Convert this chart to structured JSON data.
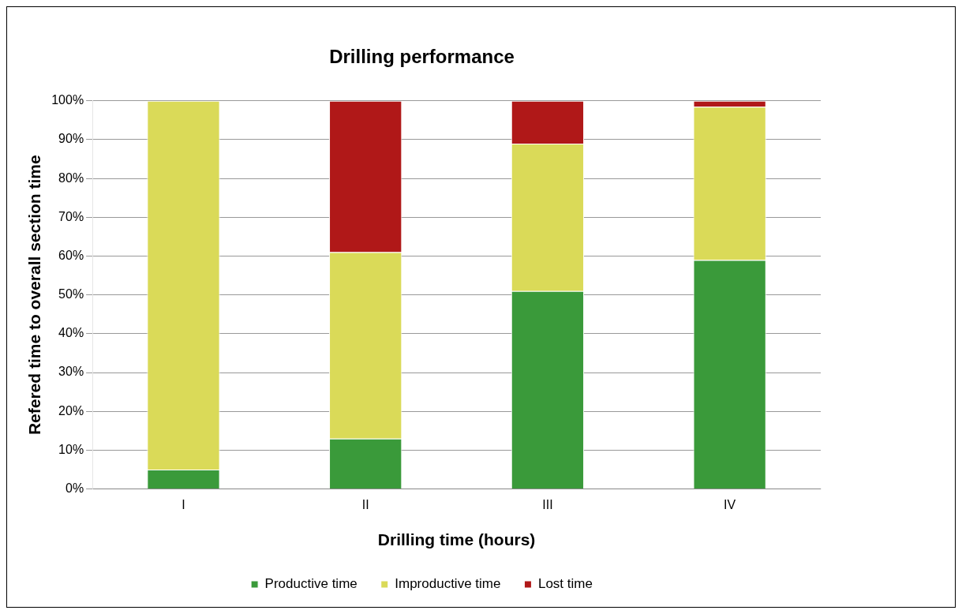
{
  "chart_data": {
    "type": "bar",
    "title": "Drilling performance",
    "xlabel": "Drilling time (hours)",
    "ylabel": "Refered time to overall section time",
    "categories": [
      "I",
      "II",
      "III",
      "IV"
    ],
    "series": [
      {
        "name": "Productive time",
        "color": "#3a9a3a",
        "values": [
          5,
          13,
          51,
          59
        ]
      },
      {
        "name": "Improductive time",
        "color": "#dada58",
        "values": [
          95,
          48,
          38,
          39.5
        ]
      },
      {
        "name": "Lost time",
        "color": "#b01818",
        "values": [
          0,
          39,
          11,
          1.5
        ]
      }
    ],
    "stacked": true,
    "ylim": [
      0,
      100
    ],
    "yticks": [
      {
        "value": 0,
        "label": "0%"
      },
      {
        "value": 10,
        "label": "10%"
      },
      {
        "value": 20,
        "label": "20%"
      },
      {
        "value": 30,
        "label": "30%"
      },
      {
        "value": 40,
        "label": "40%"
      },
      {
        "value": 50,
        "label": "50%"
      },
      {
        "value": 60,
        "label": "60%"
      },
      {
        "value": 70,
        "label": "70%"
      },
      {
        "value": 80,
        "label": "80%"
      },
      {
        "value": 90,
        "label": "90%"
      },
      {
        "value": 100,
        "label": "100%"
      }
    ],
    "grid": "y",
    "legend": "bottom"
  }
}
